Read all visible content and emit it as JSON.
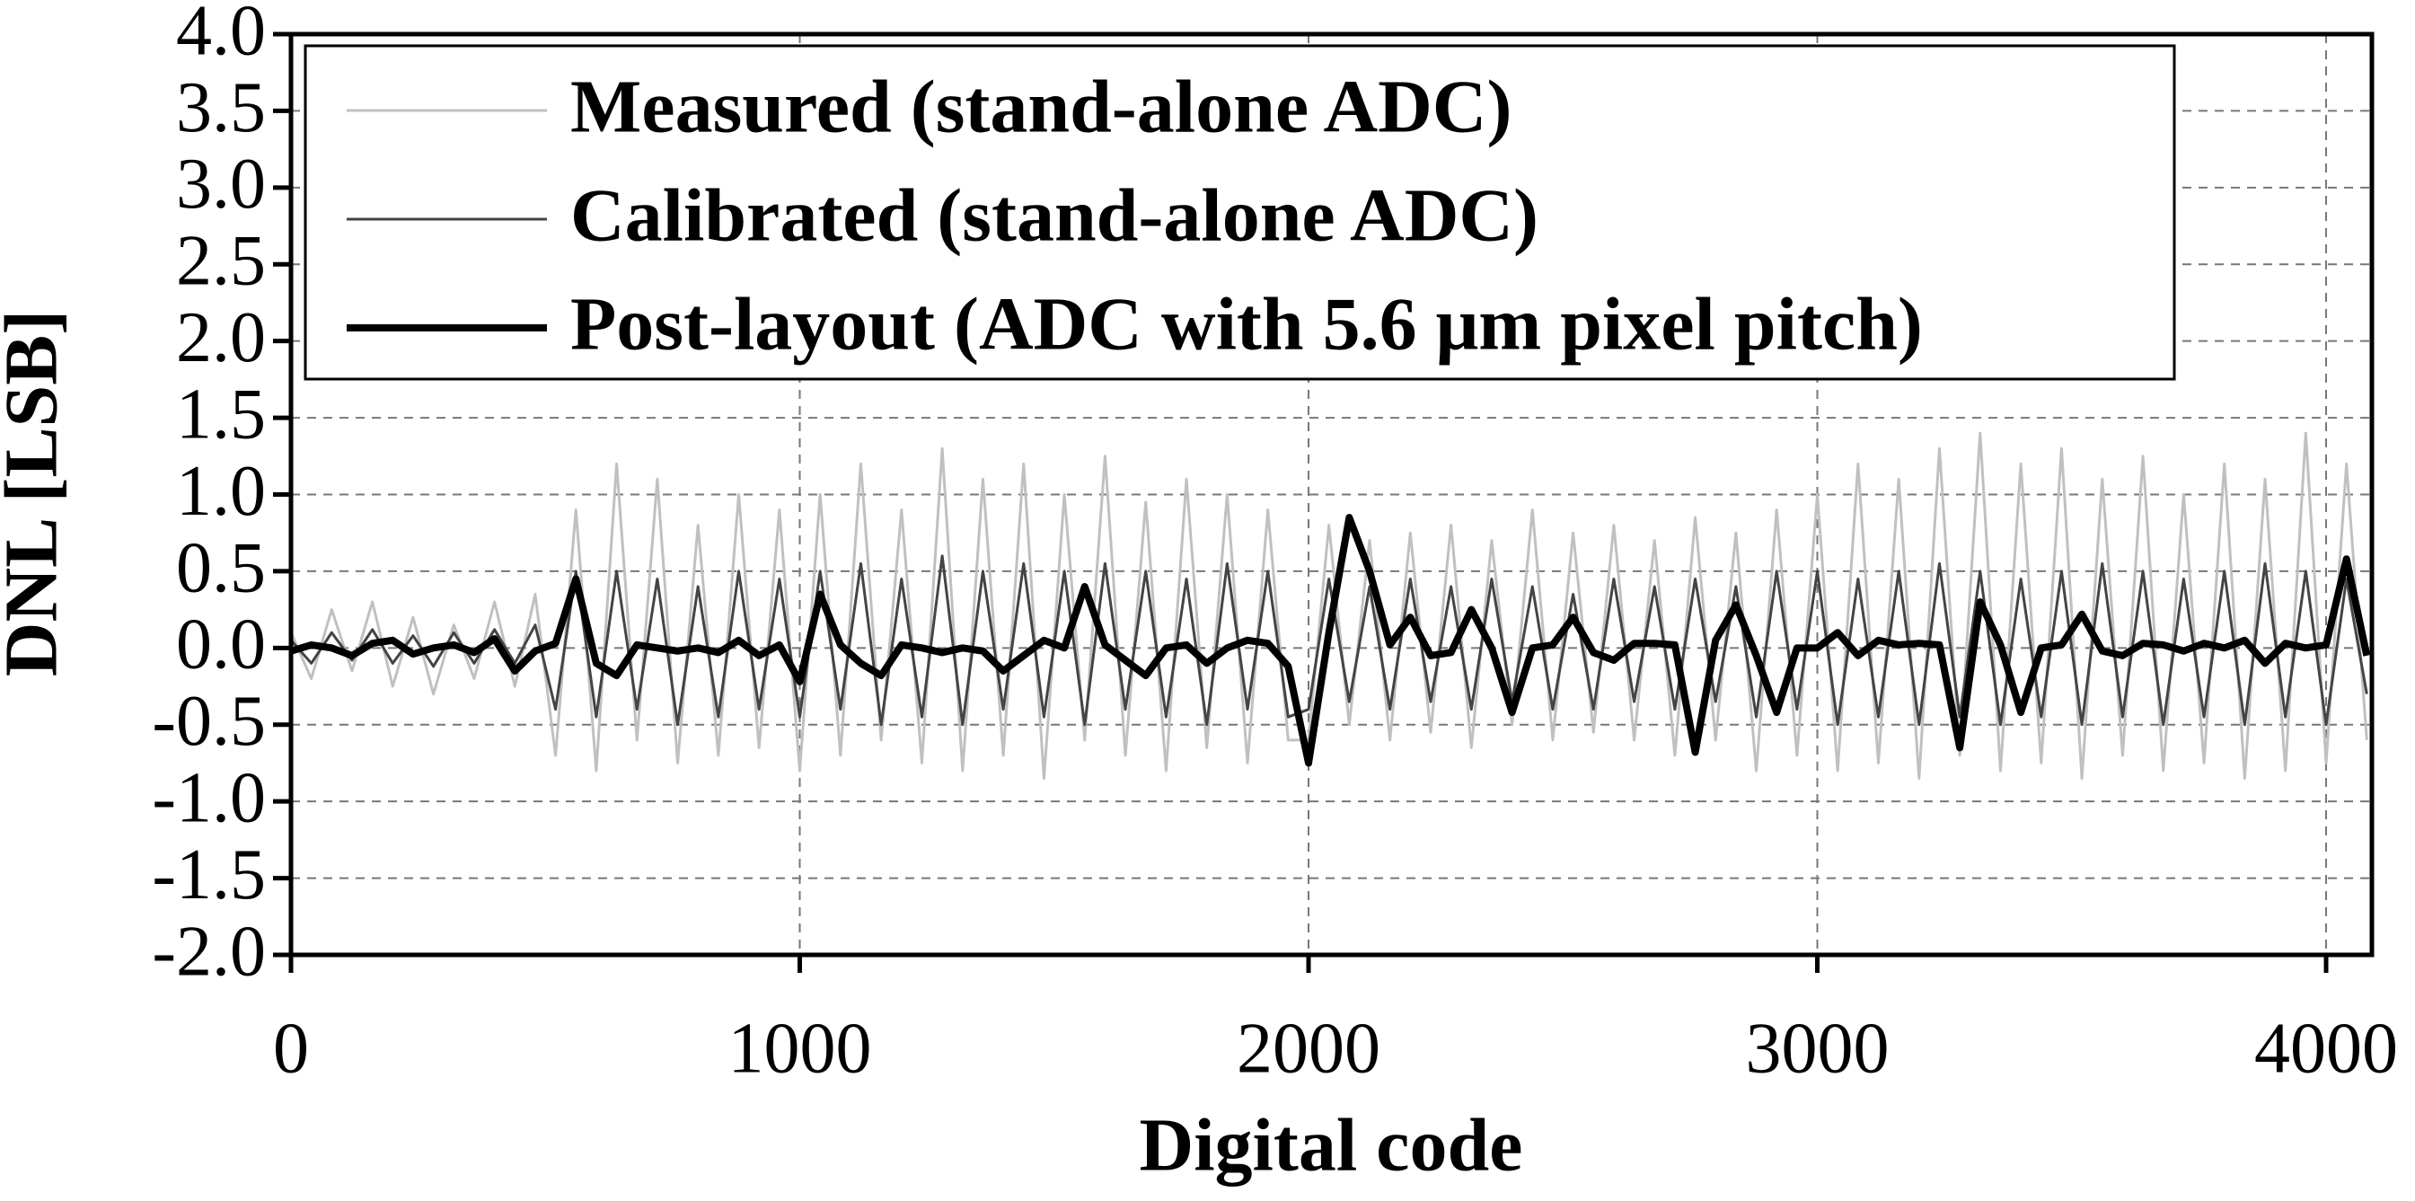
{
  "chart_data": {
    "type": "line",
    "xlabel": "Digital code",
    "ylabel": "DNL [LSB]",
    "xlim": [
      0,
      4090
    ],
    "ylim": [
      -2,
      4
    ],
    "xticks": [
      0,
      1000,
      2000,
      3000,
      4000
    ],
    "yticks": [
      {
        "value": -2,
        "label": "-2.0"
      },
      -1.5,
      {
        "value": -1,
        "label": "-1.0"
      },
      -0.5,
      {
        "value": 0,
        "label": "0.0"
      },
      0.5,
      {
        "value": 1,
        "label": "1.0"
      },
      1.5,
      {
        "value": 2,
        "label": "2.0"
      },
      2.5,
      {
        "value": 3,
        "label": "3.0"
      },
      3.5,
      {
        "value": 4,
        "label": "4.0"
      }
    ],
    "grid": true,
    "legend": "upper left",
    "x": [
      0,
      40,
      80,
      120,
      160,
      200,
      240,
      280,
      320,
      360,
      400,
      440,
      480,
      520,
      560,
      600,
      640,
      680,
      720,
      760,
      800,
      840,
      880,
      920,
      960,
      1000,
      1040,
      1080,
      1120,
      1160,
      1200,
      1240,
      1280,
      1320,
      1360,
      1400,
      1440,
      1480,
      1520,
      1560,
      1600,
      1640,
      1680,
      1720,
      1760,
      1800,
      1840,
      1880,
      1920,
      1960,
      2000,
      2040,
      2080,
      2120,
      2160,
      2200,
      2240,
      2280,
      2320,
      2360,
      2400,
      2440,
      2480,
      2520,
      2560,
      2600,
      2640,
      2680,
      2720,
      2760,
      2800,
      2840,
      2880,
      2920,
      2960,
      3000,
      3040,
      3080,
      3120,
      3160,
      3200,
      3240,
      3280,
      3320,
      3360,
      3400,
      3440,
      3480,
      3520,
      3560,
      3600,
      3640,
      3680,
      3720,
      3760,
      3800,
      3840,
      3880,
      3920,
      3960,
      4000,
      4040,
      4080
    ],
    "series": [
      {
        "name": "Measured (stand-alone ADC)",
        "color": "#c0c0c0",
        "width": 3,
        "values": [
          0.1,
          -0.2,
          0.25,
          -0.15,
          0.3,
          -0.25,
          0.2,
          -0.3,
          0.15,
          -0.2,
          0.3,
          -0.25,
          0.35,
          -0.7,
          0.9,
          -0.8,
          1.2,
          -0.6,
          1.1,
          -0.75,
          0.8,
          -0.7,
          1.0,
          -0.65,
          0.9,
          -0.8,
          1.0,
          -0.7,
          1.2,
          -0.6,
          0.9,
          -0.75,
          1.3,
          -0.8,
          1.1,
          -0.7,
          1.2,
          -0.85,
          1.0,
          -0.6,
          1.25,
          -0.7,
          0.95,
          -0.8,
          1.1,
          -0.65,
          1.0,
          -0.75,
          0.9,
          -0.6,
          -0.6,
          0.8,
          -0.5,
          0.7,
          -0.6,
          0.75,
          -0.55,
          0.8,
          -0.65,
          0.7,
          -0.5,
          0.9,
          -0.6,
          0.75,
          -0.55,
          0.8,
          -0.6,
          0.7,
          -0.7,
          0.85,
          -0.6,
          0.75,
          -0.8,
          0.9,
          -0.7,
          1.0,
          -0.8,
          1.2,
          -0.75,
          1.1,
          -0.85,
          1.3,
          -0.7,
          1.4,
          -0.8,
          1.2,
          -0.75,
          1.3,
          -0.85,
          1.1,
          -0.7,
          1.25,
          -0.8,
          1.0,
          -0.75,
          1.2,
          -0.85,
          1.1,
          -0.8,
          1.4,
          -0.75,
          1.2,
          -0.6
        ]
      },
      {
        "name": "Calibrated (stand-alone ADC)",
        "color": "#444444",
        "width": 3,
        "values": [
          0.05,
          -0.1,
          0.1,
          -0.08,
          0.12,
          -0.1,
          0.08,
          -0.12,
          0.1,
          -0.1,
          0.12,
          -0.1,
          0.15,
          -0.4,
          0.5,
          -0.45,
          0.5,
          -0.4,
          0.45,
          -0.5,
          0.4,
          -0.45,
          0.5,
          -0.4,
          0.45,
          -0.45,
          0.5,
          -0.4,
          0.55,
          -0.5,
          0.45,
          -0.45,
          0.6,
          -0.5,
          0.5,
          -0.4,
          0.55,
          -0.45,
          0.5,
          -0.5,
          0.55,
          -0.4,
          0.5,
          -0.45,
          0.45,
          -0.5,
          0.55,
          -0.4,
          0.5,
          -0.45,
          -0.4,
          0.45,
          -0.35,
          0.4,
          -0.4,
          0.45,
          -0.35,
          0.4,
          -0.4,
          0.45,
          -0.35,
          0.4,
          -0.4,
          0.35,
          -0.4,
          0.45,
          -0.35,
          0.4,
          -0.4,
          0.45,
          -0.35,
          0.4,
          -0.45,
          0.5,
          -0.4,
          0.5,
          -0.5,
          0.45,
          -0.45,
          0.5,
          -0.5,
          0.55,
          -0.45,
          0.5,
          -0.5,
          0.45,
          -0.45,
          0.5,
          -0.5,
          0.55,
          -0.45,
          0.5,
          -0.5,
          0.45,
          -0.45,
          0.5,
          -0.5,
          0.55,
          -0.45,
          0.5,
          -0.5,
          0.45,
          -0.3
        ]
      },
      {
        "name": "Post-layout (ADC with 5.6 μm pixel pitch)",
        "color": "#000000",
        "width": 8,
        "values": [
          -0.02,
          0.02,
          0.0,
          -0.05,
          0.03,
          0.05,
          -0.04,
          0.0,
          0.02,
          -0.03,
          0.06,
          -0.15,
          -0.02,
          0.03,
          0.45,
          -0.1,
          -0.18,
          0.02,
          0.0,
          -0.02,
          0.0,
          -0.03,
          0.05,
          -0.05,
          0.02,
          -0.22,
          0.35,
          0.02,
          -0.1,
          -0.18,
          0.02,
          0.0,
          -0.03,
          0.0,
          -0.02,
          -0.15,
          -0.05,
          0.05,
          0.0,
          0.4,
          0.02,
          -0.08,
          -0.18,
          0.0,
          0.02,
          -0.1,
          0.0,
          0.05,
          0.03,
          -0.12,
          -0.75,
          0.1,
          0.85,
          0.5,
          0.02,
          0.2,
          -0.05,
          -0.03,
          0.25,
          0.0,
          -0.42,
          0.0,
          0.02,
          0.2,
          -0.03,
          -0.08,
          0.03,
          0.03,
          0.02,
          -0.68,
          0.05,
          0.28,
          -0.05,
          -0.42,
          0.0,
          0.0,
          0.1,
          -0.05,
          0.05,
          0.02,
          0.03,
          0.02,
          -0.65,
          0.3,
          0.02,
          -0.42,
          0.0,
          0.02,
          0.22,
          -0.02,
          -0.05,
          0.03,
          0.02,
          -0.02,
          0.03,
          0.0,
          0.05,
          -0.1,
          0.03,
          0.0,
          0.02,
          0.58,
          -0.05
        ]
      }
    ]
  }
}
